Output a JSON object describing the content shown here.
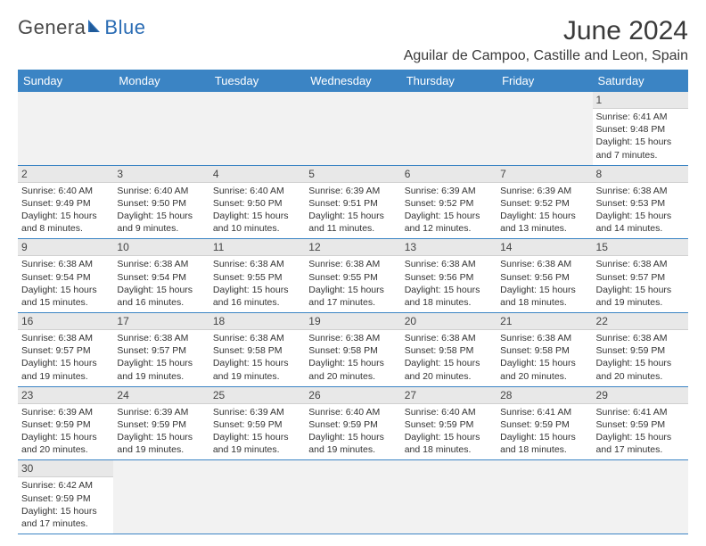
{
  "brand": {
    "general": "Genera",
    "blue": "Blue"
  },
  "title": "June 2024",
  "location": "Aguilar de Campoo, Castille and Leon, Spain",
  "colors": {
    "header_bg": "#3b84c4",
    "header_text": "#ffffff",
    "daynum_bg": "#e8e8e8",
    "border": "#3b84c4",
    "logo_blue": "#2a6cb4",
    "text": "#333333"
  },
  "weekdays": [
    "Sunday",
    "Monday",
    "Tuesday",
    "Wednesday",
    "Thursday",
    "Friday",
    "Saturday"
  ],
  "grid": [
    [
      null,
      null,
      null,
      null,
      null,
      null,
      {
        "n": "1",
        "sr": "Sunrise: 6:41 AM",
        "ss": "Sunset: 9:48 PM",
        "dl": "Daylight: 15 hours and 7 minutes."
      }
    ],
    [
      {
        "n": "2",
        "sr": "Sunrise: 6:40 AM",
        "ss": "Sunset: 9:49 PM",
        "dl": "Daylight: 15 hours and 8 minutes."
      },
      {
        "n": "3",
        "sr": "Sunrise: 6:40 AM",
        "ss": "Sunset: 9:50 PM",
        "dl": "Daylight: 15 hours and 9 minutes."
      },
      {
        "n": "4",
        "sr": "Sunrise: 6:40 AM",
        "ss": "Sunset: 9:50 PM",
        "dl": "Daylight: 15 hours and 10 minutes."
      },
      {
        "n": "5",
        "sr": "Sunrise: 6:39 AM",
        "ss": "Sunset: 9:51 PM",
        "dl": "Daylight: 15 hours and 11 minutes."
      },
      {
        "n": "6",
        "sr": "Sunrise: 6:39 AM",
        "ss": "Sunset: 9:52 PM",
        "dl": "Daylight: 15 hours and 12 minutes."
      },
      {
        "n": "7",
        "sr": "Sunrise: 6:39 AM",
        "ss": "Sunset: 9:52 PM",
        "dl": "Daylight: 15 hours and 13 minutes."
      },
      {
        "n": "8",
        "sr": "Sunrise: 6:38 AM",
        "ss": "Sunset: 9:53 PM",
        "dl": "Daylight: 15 hours and 14 minutes."
      }
    ],
    [
      {
        "n": "9",
        "sr": "Sunrise: 6:38 AM",
        "ss": "Sunset: 9:54 PM",
        "dl": "Daylight: 15 hours and 15 minutes."
      },
      {
        "n": "10",
        "sr": "Sunrise: 6:38 AM",
        "ss": "Sunset: 9:54 PM",
        "dl": "Daylight: 15 hours and 16 minutes."
      },
      {
        "n": "11",
        "sr": "Sunrise: 6:38 AM",
        "ss": "Sunset: 9:55 PM",
        "dl": "Daylight: 15 hours and 16 minutes."
      },
      {
        "n": "12",
        "sr": "Sunrise: 6:38 AM",
        "ss": "Sunset: 9:55 PM",
        "dl": "Daylight: 15 hours and 17 minutes."
      },
      {
        "n": "13",
        "sr": "Sunrise: 6:38 AM",
        "ss": "Sunset: 9:56 PM",
        "dl": "Daylight: 15 hours and 18 minutes."
      },
      {
        "n": "14",
        "sr": "Sunrise: 6:38 AM",
        "ss": "Sunset: 9:56 PM",
        "dl": "Daylight: 15 hours and 18 minutes."
      },
      {
        "n": "15",
        "sr": "Sunrise: 6:38 AM",
        "ss": "Sunset: 9:57 PM",
        "dl": "Daylight: 15 hours and 19 minutes."
      }
    ],
    [
      {
        "n": "16",
        "sr": "Sunrise: 6:38 AM",
        "ss": "Sunset: 9:57 PM",
        "dl": "Daylight: 15 hours and 19 minutes."
      },
      {
        "n": "17",
        "sr": "Sunrise: 6:38 AM",
        "ss": "Sunset: 9:57 PM",
        "dl": "Daylight: 15 hours and 19 minutes."
      },
      {
        "n": "18",
        "sr": "Sunrise: 6:38 AM",
        "ss": "Sunset: 9:58 PM",
        "dl": "Daylight: 15 hours and 19 minutes."
      },
      {
        "n": "19",
        "sr": "Sunrise: 6:38 AM",
        "ss": "Sunset: 9:58 PM",
        "dl": "Daylight: 15 hours and 20 minutes."
      },
      {
        "n": "20",
        "sr": "Sunrise: 6:38 AM",
        "ss": "Sunset: 9:58 PM",
        "dl": "Daylight: 15 hours and 20 minutes."
      },
      {
        "n": "21",
        "sr": "Sunrise: 6:38 AM",
        "ss": "Sunset: 9:58 PM",
        "dl": "Daylight: 15 hours and 20 minutes."
      },
      {
        "n": "22",
        "sr": "Sunrise: 6:38 AM",
        "ss": "Sunset: 9:59 PM",
        "dl": "Daylight: 15 hours and 20 minutes."
      }
    ],
    [
      {
        "n": "23",
        "sr": "Sunrise: 6:39 AM",
        "ss": "Sunset: 9:59 PM",
        "dl": "Daylight: 15 hours and 20 minutes."
      },
      {
        "n": "24",
        "sr": "Sunrise: 6:39 AM",
        "ss": "Sunset: 9:59 PM",
        "dl": "Daylight: 15 hours and 19 minutes."
      },
      {
        "n": "25",
        "sr": "Sunrise: 6:39 AM",
        "ss": "Sunset: 9:59 PM",
        "dl": "Daylight: 15 hours and 19 minutes."
      },
      {
        "n": "26",
        "sr": "Sunrise: 6:40 AM",
        "ss": "Sunset: 9:59 PM",
        "dl": "Daylight: 15 hours and 19 minutes."
      },
      {
        "n": "27",
        "sr": "Sunrise: 6:40 AM",
        "ss": "Sunset: 9:59 PM",
        "dl": "Daylight: 15 hours and 18 minutes."
      },
      {
        "n": "28",
        "sr": "Sunrise: 6:41 AM",
        "ss": "Sunset: 9:59 PM",
        "dl": "Daylight: 15 hours and 18 minutes."
      },
      {
        "n": "29",
        "sr": "Sunrise: 6:41 AM",
        "ss": "Sunset: 9:59 PM",
        "dl": "Daylight: 15 hours and 17 minutes."
      }
    ],
    [
      {
        "n": "30",
        "sr": "Sunrise: 6:42 AM",
        "ss": "Sunset: 9:59 PM",
        "dl": "Daylight: 15 hours and 17 minutes."
      },
      null,
      null,
      null,
      null,
      null,
      null
    ]
  ]
}
